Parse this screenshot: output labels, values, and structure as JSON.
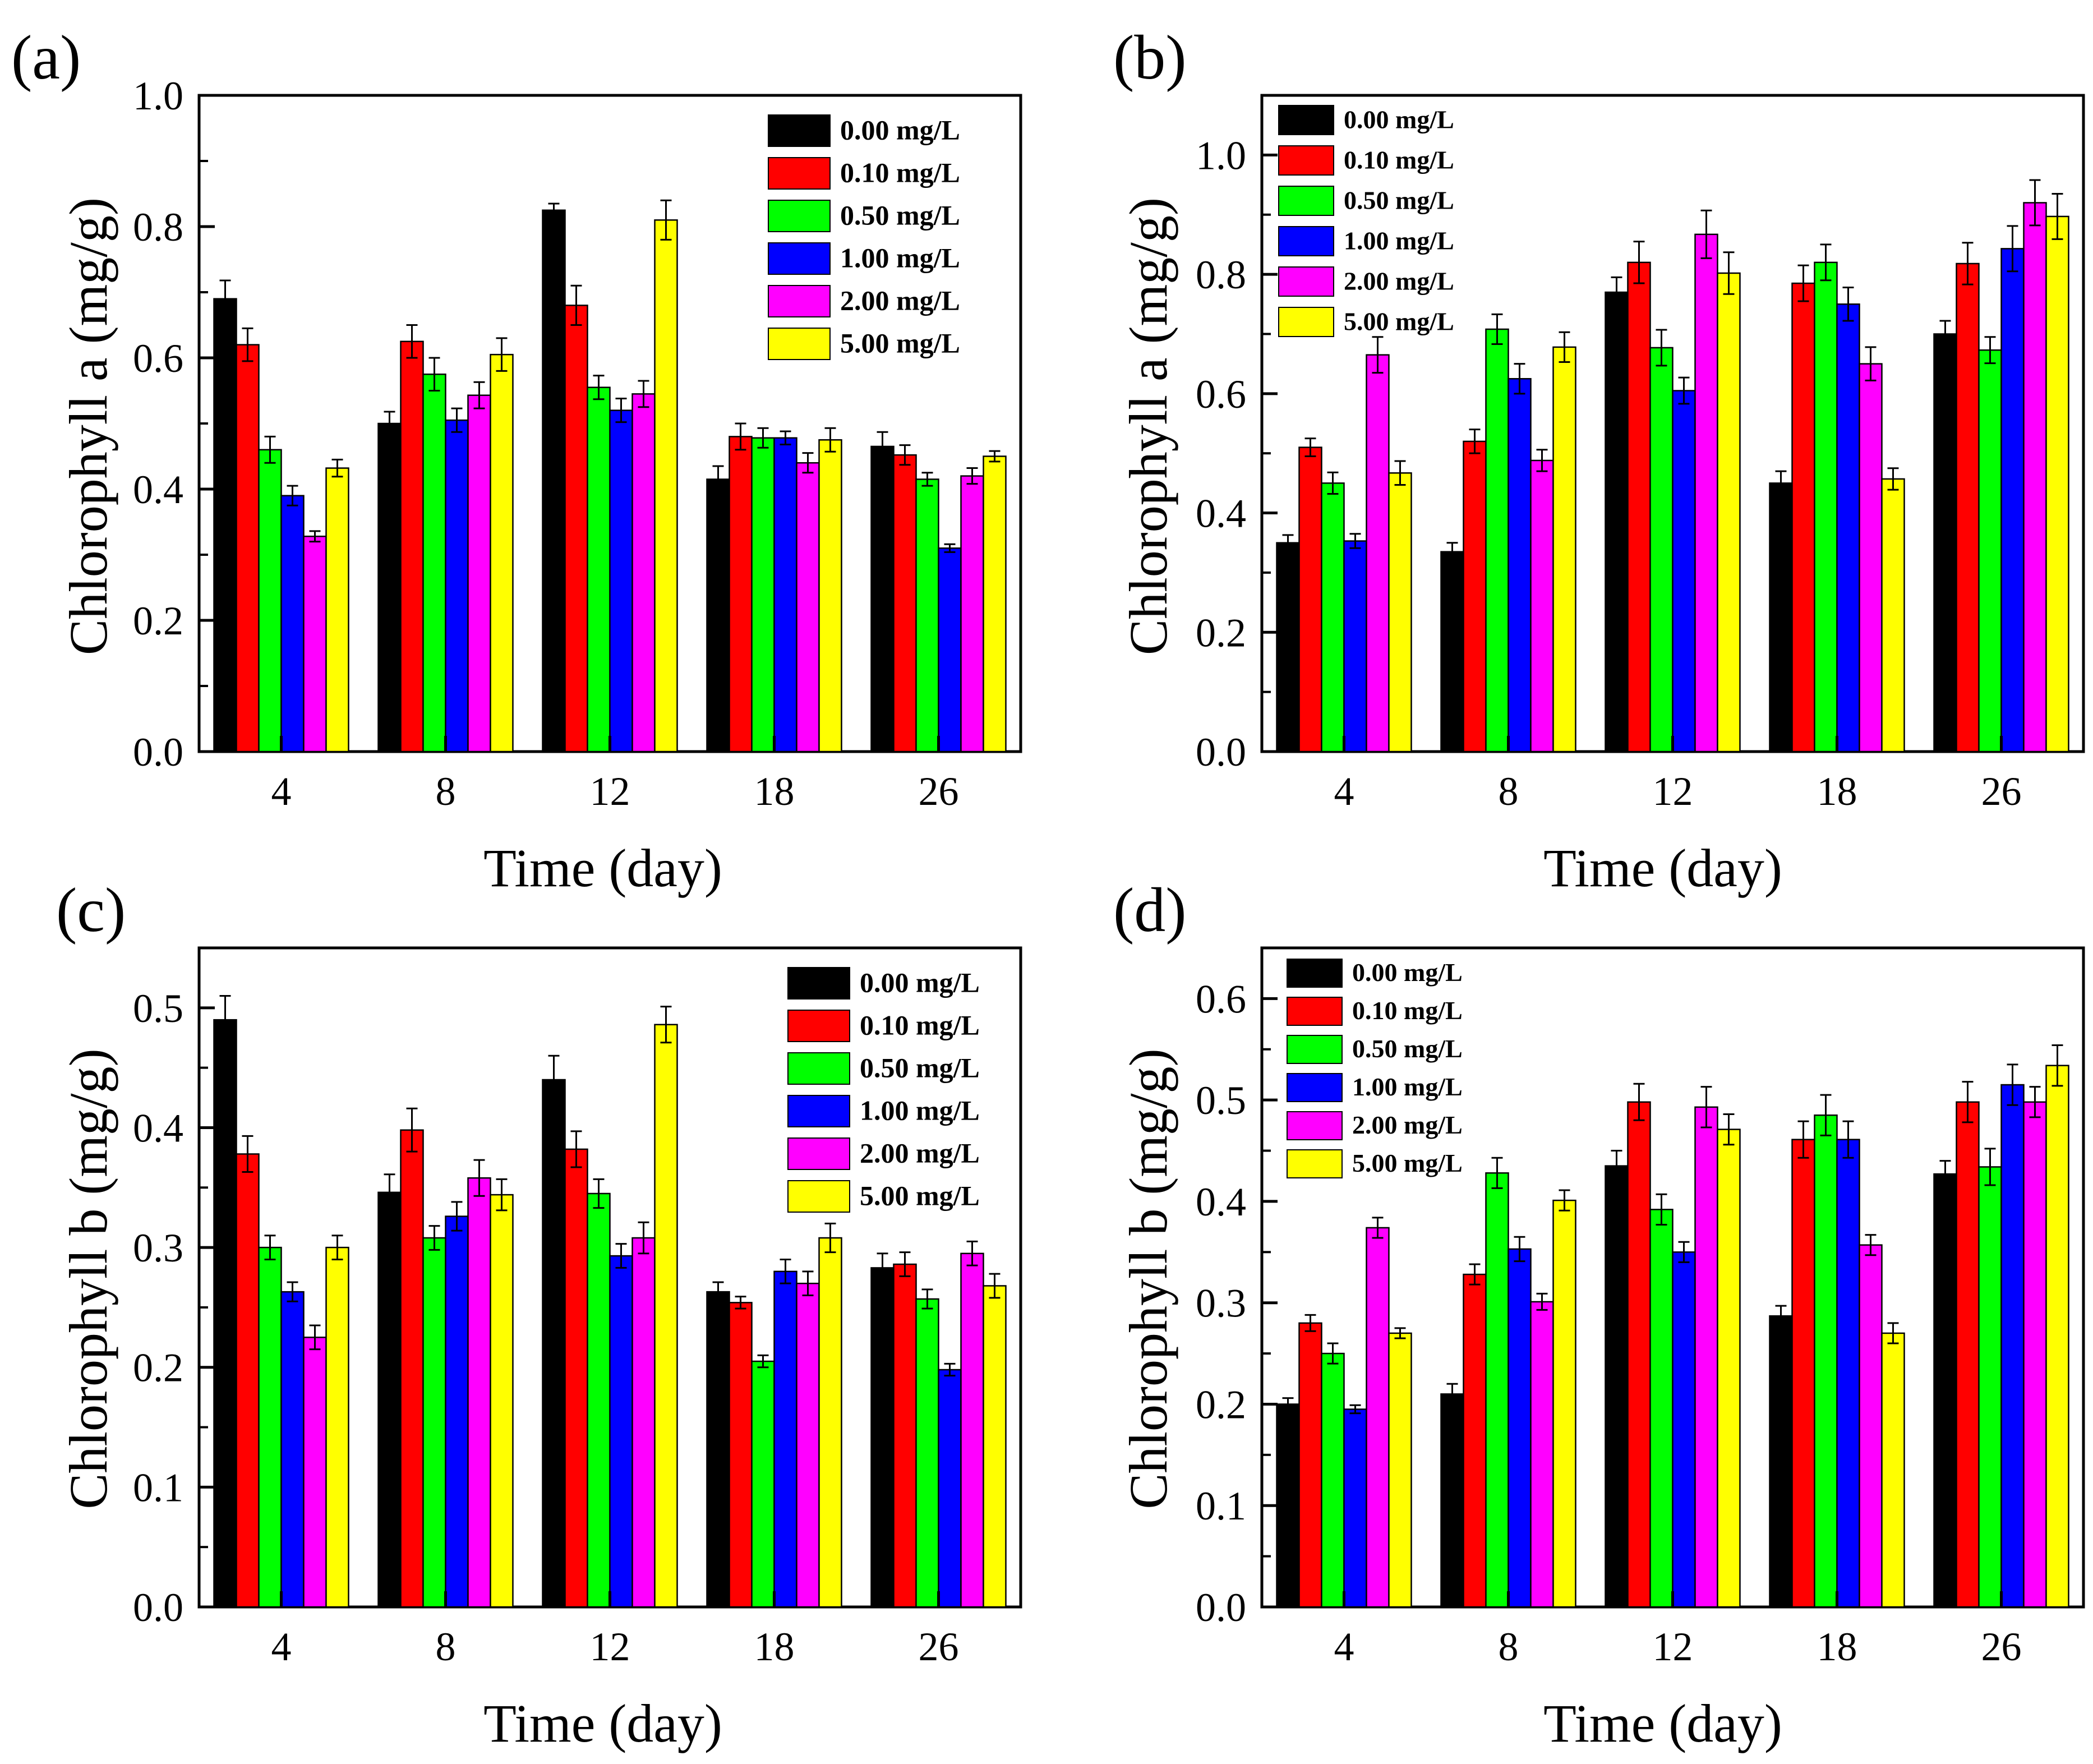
{
  "colors": {
    "0.00 mg/L": "#000000",
    "0.10 mg/L": "#ff0000",
    "0.50 mg/L": "#00ff00",
    "1.00 mg/L": "#0000ff",
    "2.00 mg/L": "#ff00ff",
    "5.00 mg/L": "#ffff00"
  },
  "chart_data": [
    {
      "type": "bar",
      "panel_label": "(a)",
      "xlabel": "Time (day)",
      "ylabel": "Chlorophyll a (mg/g)",
      "categories": [
        "4",
        "8",
        "12",
        "18",
        "26"
      ],
      "ylim": [
        0,
        1.0
      ],
      "yticks": [
        "0.0",
        "0.2",
        "0.4",
        "0.6",
        "0.8",
        "1.0"
      ],
      "legend_position": "top-right",
      "series": [
        {
          "name": "0.00 mg/L",
          "values": [
            0.69,
            0.5,
            0.825,
            0.415,
            0.465
          ],
          "errors": [
            0.028,
            0.018,
            0.01,
            0.02,
            0.022
          ]
        },
        {
          "name": "0.10 mg/L",
          "values": [
            0.62,
            0.625,
            0.68,
            0.48,
            0.452
          ],
          "errors": [
            0.025,
            0.025,
            0.03,
            0.02,
            0.015
          ]
        },
        {
          "name": "0.50 mg/L",
          "values": [
            0.46,
            0.575,
            0.555,
            0.478,
            0.415
          ],
          "errors": [
            0.02,
            0.025,
            0.018,
            0.015,
            0.01
          ]
        },
        {
          "name": "1.00 mg/L",
          "values": [
            0.39,
            0.505,
            0.52,
            0.478,
            0.31
          ],
          "errors": [
            0.015,
            0.018,
            0.018,
            0.01,
            0.006
          ]
        },
        {
          "name": "2.00 mg/L",
          "values": [
            0.328,
            0.543,
            0.545,
            0.44,
            0.42
          ],
          "errors": [
            0.008,
            0.02,
            0.02,
            0.015,
            0.012
          ]
        },
        {
          "name": "5.00 mg/L",
          "values": [
            0.432,
            0.605,
            0.81,
            0.475,
            0.45
          ],
          "errors": [
            0.013,
            0.025,
            0.03,
            0.018,
            0.008
          ]
        }
      ]
    },
    {
      "type": "bar",
      "panel_label": "(b)",
      "xlabel": "Time (day)",
      "ylabel": "Chlorophyll a (mg/g)",
      "categories": [
        "4",
        "8",
        "12",
        "18",
        "26"
      ],
      "ylim": [
        0,
        1.1
      ],
      "yticks": [
        "0.0",
        "0.2",
        "0.4",
        "0.6",
        "0.8",
        "1.0"
      ],
      "legend_position": "top-left",
      "series": [
        {
          "name": "0.00 mg/L",
          "values": [
            0.35,
            0.335,
            0.77,
            0.45,
            0.7
          ],
          "errors": [
            0.013,
            0.015,
            0.025,
            0.02,
            0.022
          ]
        },
        {
          "name": "0.10 mg/L",
          "values": [
            0.51,
            0.52,
            0.82,
            0.785,
            0.818
          ],
          "errors": [
            0.015,
            0.02,
            0.035,
            0.03,
            0.035
          ]
        },
        {
          "name": "0.50 mg/L",
          "values": [
            0.45,
            0.708,
            0.677,
            0.82,
            0.673
          ],
          "errors": [
            0.018,
            0.025,
            0.03,
            0.03,
            0.022
          ]
        },
        {
          "name": "1.00 mg/L",
          "values": [
            0.353,
            0.625,
            0.605,
            0.75,
            0.843
          ],
          "errors": [
            0.012,
            0.025,
            0.022,
            0.028,
            0.038
          ]
        },
        {
          "name": "2.00 mg/L",
          "values": [
            0.665,
            0.488,
            0.867,
            0.65,
            0.92
          ],
          "errors": [
            0.03,
            0.018,
            0.04,
            0.028,
            0.038
          ]
        },
        {
          "name": "5.00 mg/L",
          "values": [
            0.467,
            0.678,
            0.802,
            0.457,
            0.897
          ],
          "errors": [
            0.02,
            0.025,
            0.035,
            0.018,
            0.038
          ]
        }
      ]
    },
    {
      "type": "bar",
      "panel_label": "(c)",
      "xlabel": "Time (day)",
      "ylabel": "Chlorophyll b (mg/g)",
      "categories": [
        "4",
        "8",
        "12",
        "18",
        "26"
      ],
      "ylim": [
        0,
        0.55
      ],
      "yticks": [
        "0.0",
        "0.1",
        "0.2",
        "0.3",
        "0.4",
        "0.5"
      ],
      "legend_position": "top-right",
      "series": [
        {
          "name": "0.00 mg/L",
          "values": [
            0.49,
            0.346,
            0.44,
            0.263,
            0.283
          ],
          "errors": [
            0.02,
            0.015,
            0.02,
            0.008,
            0.012
          ]
        },
        {
          "name": "0.10 mg/L",
          "values": [
            0.378,
            0.398,
            0.382,
            0.254,
            0.286
          ],
          "errors": [
            0.015,
            0.018,
            0.015,
            0.005,
            0.01
          ]
        },
        {
          "name": "0.50 mg/L",
          "values": [
            0.3,
            0.308,
            0.345,
            0.205,
            0.257
          ],
          "errors": [
            0.01,
            0.01,
            0.012,
            0.005,
            0.008
          ]
        },
        {
          "name": "1.00 mg/L",
          "values": [
            0.263,
            0.326,
            0.293,
            0.28,
            0.198
          ],
          "errors": [
            0.008,
            0.012,
            0.01,
            0.01,
            0.005
          ]
        },
        {
          "name": "2.00 mg/L",
          "values": [
            0.225,
            0.358,
            0.308,
            0.27,
            0.295
          ],
          "errors": [
            0.01,
            0.015,
            0.013,
            0.01,
            0.01
          ]
        },
        {
          "name": "5.00 mg/L",
          "values": [
            0.3,
            0.344,
            0.486,
            0.308,
            0.268
          ],
          "errors": [
            0.01,
            0.013,
            0.015,
            0.012,
            0.01
          ]
        }
      ]
    },
    {
      "type": "bar",
      "panel_label": "(d)",
      "xlabel": "Time (day)",
      "ylabel": "Chlorophyll b (mg/g)",
      "categories": [
        "4",
        "8",
        "12",
        "18",
        "26"
      ],
      "ylim": [
        0,
        0.65
      ],
      "yticks": [
        "0.0",
        "0.1",
        "0.2",
        "0.3",
        "0.4",
        "0.5",
        "0.6"
      ],
      "legend_position": "top-left",
      "series": [
        {
          "name": "0.00 mg/L",
          "values": [
            0.2,
            0.21,
            0.435,
            0.287,
            0.427
          ],
          "errors": [
            0.006,
            0.01,
            0.015,
            0.01,
            0.013
          ]
        },
        {
          "name": "0.10 mg/L",
          "values": [
            0.28,
            0.328,
            0.498,
            0.461,
            0.498
          ],
          "errors": [
            0.008,
            0.01,
            0.018,
            0.018,
            0.02
          ]
        },
        {
          "name": "0.50 mg/L",
          "values": [
            0.25,
            0.428,
            0.392,
            0.485,
            0.434
          ],
          "errors": [
            0.01,
            0.015,
            0.015,
            0.02,
            0.018
          ]
        },
        {
          "name": "1.00 mg/L",
          "values": [
            0.195,
            0.353,
            0.35,
            0.461,
            0.515
          ],
          "errors": [
            0.004,
            0.012,
            0.01,
            0.018,
            0.02
          ]
        },
        {
          "name": "2.00 mg/L",
          "values": [
            0.374,
            0.301,
            0.493,
            0.357,
            0.498
          ],
          "errors": [
            0.01,
            0.008,
            0.02,
            0.01,
            0.015
          ]
        },
        {
          "name": "5.00 mg/L",
          "values": [
            0.27,
            0.401,
            0.471,
            0.27,
            0.534
          ],
          "errors": [
            0.005,
            0.01,
            0.015,
            0.01,
            0.02
          ]
        }
      ]
    }
  ]
}
